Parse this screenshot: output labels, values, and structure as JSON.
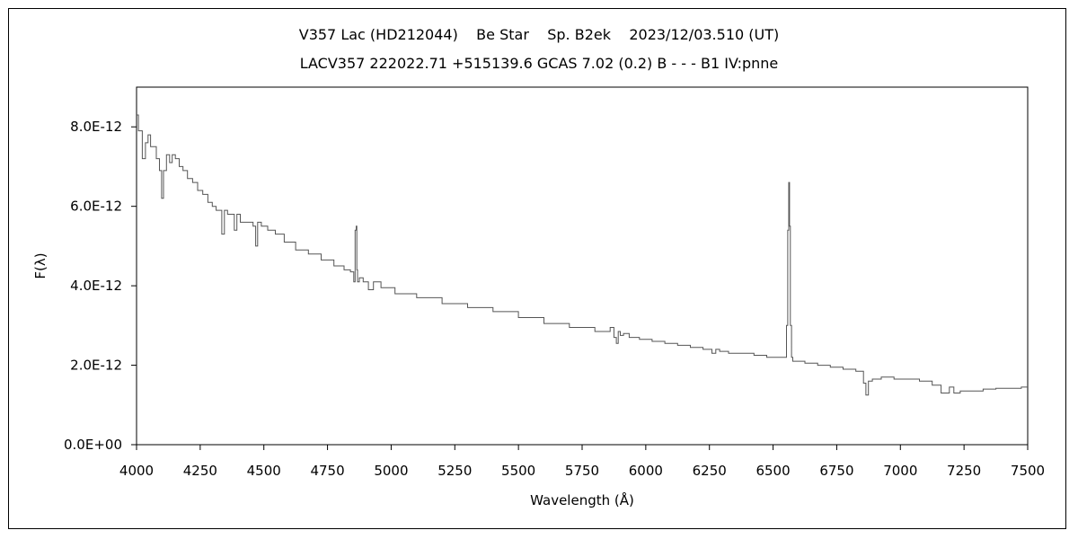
{
  "header": {
    "title_line1": "V357 Lac (HD212044)    Be Star    Sp. B2ek    2023/12/03.510 (UT)",
    "title_line2": "LACV357 222022.71 +515139.6 GCAS 7.02 (0.2) B - - - B1 IV:pnne"
  },
  "chart_data": {
    "type": "line",
    "title": "V357 Lac (HD212044)    Be Star    Sp. B2ek    2023/12/03.510 (UT)",
    "subtitle": "LACV357 222022.71 +515139.6 GCAS 7.02 (0.2) B - - - B1 IV:pnne",
    "xlabel": "Wavelength (Å)",
    "ylabel": "F(λ)",
    "xlim": [
      4000,
      7500
    ],
    "ylim": [
      0,
      9e-12
    ],
    "grid": false,
    "x_ticks": [
      "4000",
      "4250",
      "4500",
      "4750",
      "5000",
      "5250",
      "5500",
      "5750",
      "6000",
      "6250",
      "6500",
      "6750",
      "7000",
      "7250",
      "7500"
    ],
    "y_ticks": [
      "0.0E+00",
      "2.0E-12",
      "4.0E-12",
      "6.0E-12",
      "8.0E-12"
    ],
    "series": [
      {
        "color": "#555555",
        "x": [
          4000,
          4015,
          4030,
          4040,
          4050,
          4060,
          4070,
          4085,
          4095,
          4102,
          4110,
          4125,
          4135,
          4145,
          4160,
          4175,
          4190,
          4210,
          4230,
          4250,
          4270,
          4290,
          4305,
          4320,
          4330,
          4340,
          4350,
          4365,
          4380,
          4388,
          4400,
          4415,
          4430,
          4450,
          4465,
          4471,
          4480,
          4500,
          4530,
          4560,
          4600,
          4650,
          4700,
          4750,
          4800,
          4830,
          4850,
          4856,
          4861,
          4864,
          4866,
          4870,
          4880,
          4900,
          4921,
          4940,
          4980,
          5050,
          5150,
          5250,
          5350,
          5450,
          5550,
          5650,
          5750,
          5850,
          5870,
          5880,
          5889,
          5895,
          5905,
          5920,
          5950,
          6000,
          6050,
          6100,
          6150,
          6200,
          6250,
          6270,
          6280,
          6300,
          6350,
          6400,
          6450,
          6500,
          6530,
          6550,
          6555,
          6560,
          6563,
          6566,
          6570,
          6575,
          6580,
          6600,
          6650,
          6700,
          6750,
          6800,
          6850,
          6860,
          6869,
          6880,
          6900,
          6950,
          7000,
          7050,
          7100,
          7150,
          7170,
          7185,
          7200,
          7220,
          7250,
          7300,
          7350,
          7400,
          7450,
          7500
        ],
        "y": [
          8.3e-12,
          7.9e-12,
          7.2e-12,
          7.6e-12,
          7.8e-12,
          7.5e-12,
          7.5e-12,
          7.2e-12,
          6.9e-12,
          6.2e-12,
          6.9e-12,
          7.3e-12,
          7.1e-12,
          7.3e-12,
          7.2e-12,
          7e-12,
          6.9e-12,
          6.7e-12,
          6.6e-12,
          6.4e-12,
          6.3e-12,
          6.1e-12,
          6e-12,
          5.9e-12,
          5.9e-12,
          5.3e-12,
          5.9e-12,
          5.8e-12,
          5.8e-12,
          5.4e-12,
          5.8e-12,
          5.6e-12,
          5.6e-12,
          5.6e-12,
          5.5e-12,
          5e-12,
          5.6e-12,
          5.5e-12,
          5.4e-12,
          5.3e-12,
          5.1e-12,
          4.9e-12,
          4.8e-12,
          4.65e-12,
          4.5e-12,
          4.4e-12,
          4.35e-12,
          4.1e-12,
          5.4e-12,
          5.5e-12,
          4.4e-12,
          4.1e-12,
          4.2e-12,
          4.1e-12,
          3.9e-12,
          4.1e-12,
          3.95e-12,
          3.8e-12,
          3.7e-12,
          3.55e-12,
          3.45e-12,
          3.35e-12,
          3.2e-12,
          3.05e-12,
          2.95e-12,
          2.85e-12,
          2.95e-12,
          2.7e-12,
          2.55e-12,
          2.85e-12,
          2.75e-12,
          2.8e-12,
          2.7e-12,
          2.65e-12,
          2.6e-12,
          2.55e-12,
          2.5e-12,
          2.45e-12,
          2.4e-12,
          2.3e-12,
          2.4e-12,
          2.35e-12,
          2.3e-12,
          2.3e-12,
          2.25e-12,
          2.2e-12,
          2.2e-12,
          2.2e-12,
          3e-12,
          5.4e-12,
          6.6e-12,
          5.5e-12,
          3e-12,
          2.2e-12,
          2.1e-12,
          2.1e-12,
          2.05e-12,
          2e-12,
          1.95e-12,
          1.9e-12,
          1.85e-12,
          1.55e-12,
          1.25e-12,
          1.6e-12,
          1.65e-12,
          1.7e-12,
          1.65e-12,
          1.65e-12,
          1.6e-12,
          1.5e-12,
          1.3e-12,
          1.3e-12,
          1.45e-12,
          1.3e-12,
          1.35e-12,
          1.35e-12,
          1.4e-12,
          1.42e-12,
          1.42e-12,
          1.45e-12
        ]
      }
    ]
  }
}
